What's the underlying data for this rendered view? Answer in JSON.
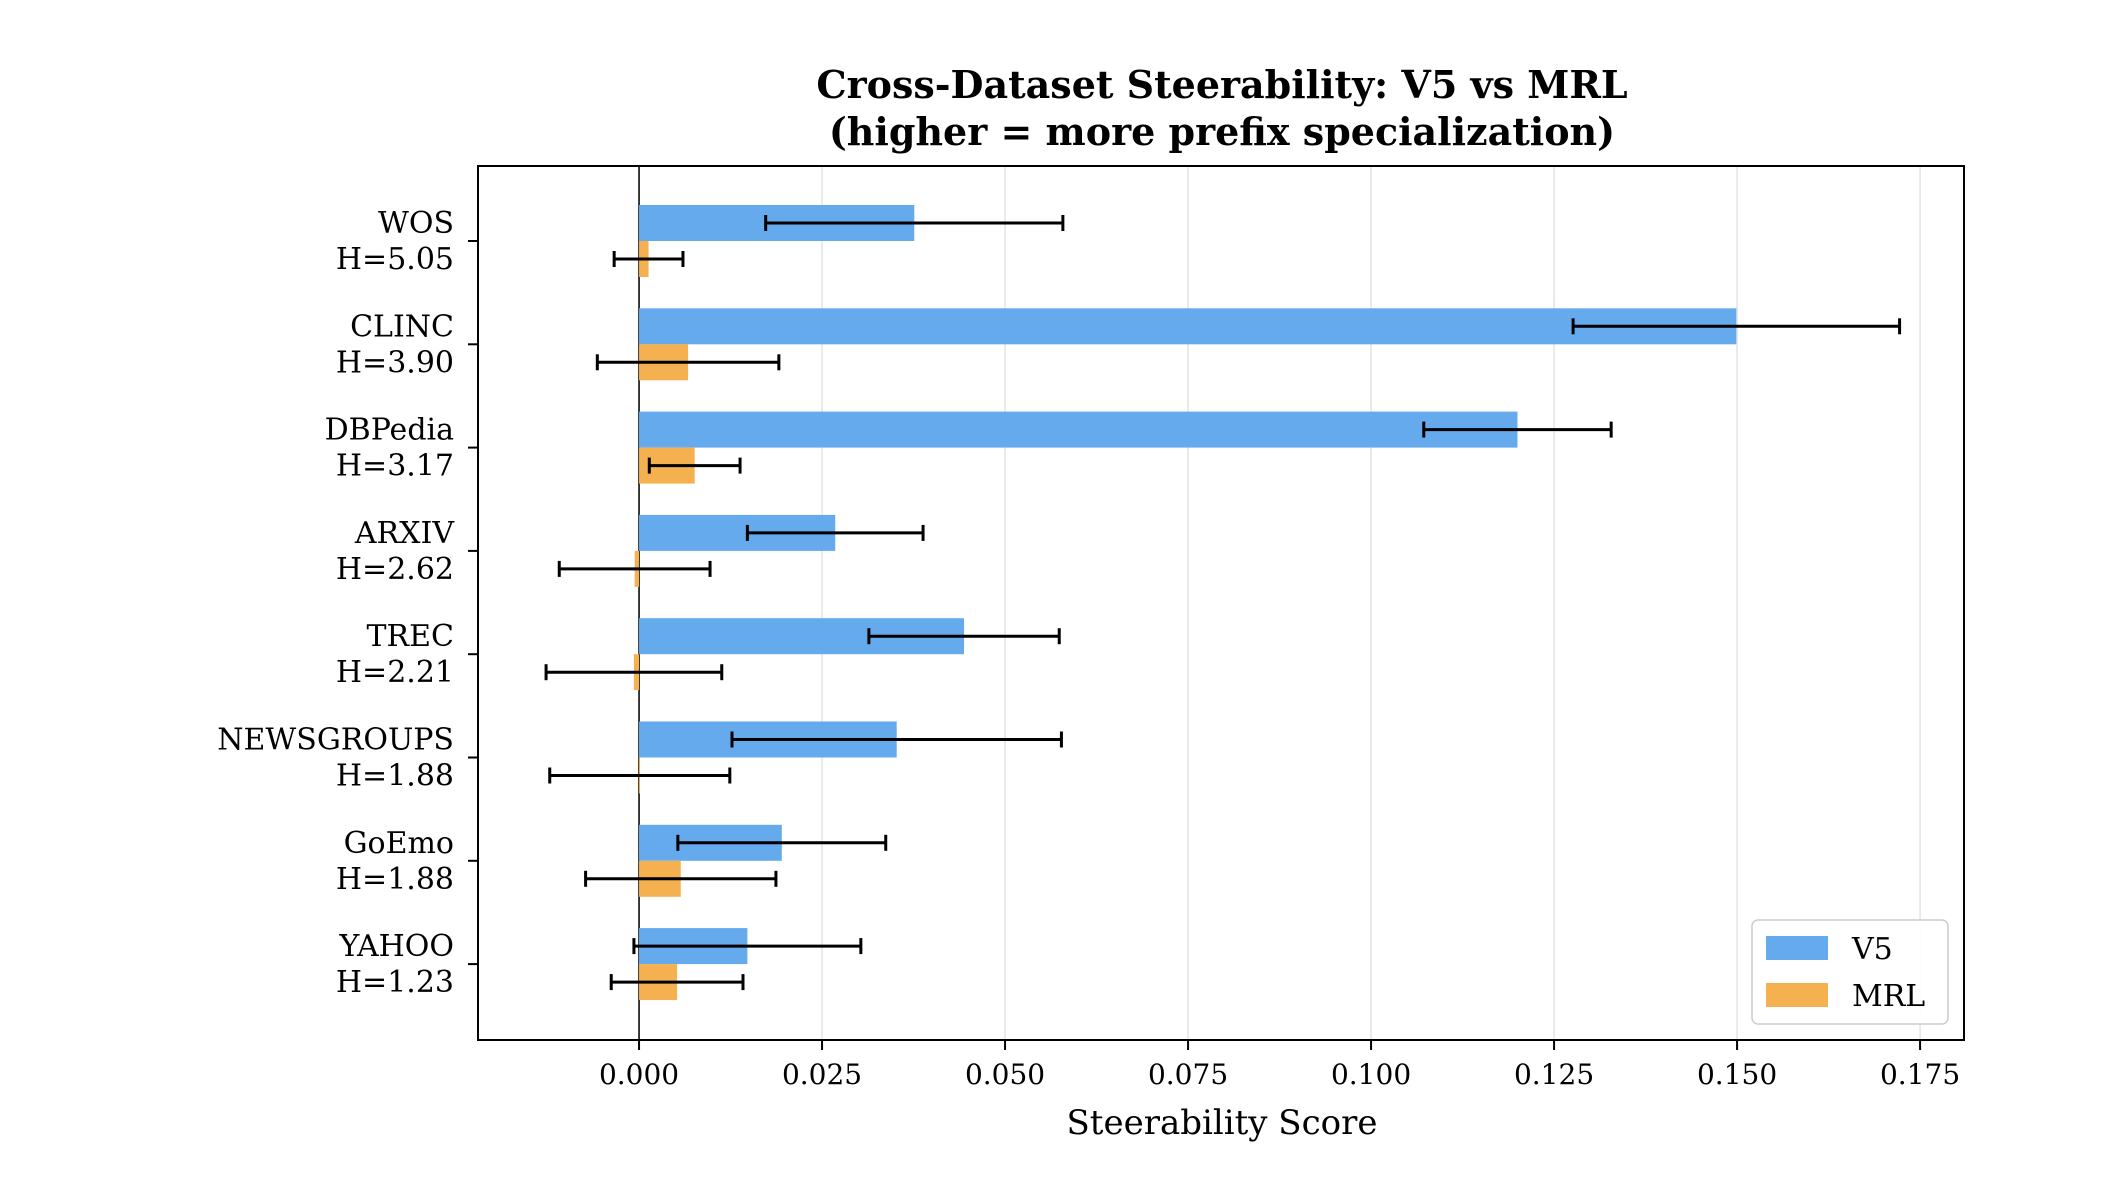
{
  "chart_data": {
    "type": "bar",
    "orientation": "horizontal",
    "title": "Cross-Dataset Steerability: V5 vs MRL",
    "subtitle": "(higher = more prefix specialization)",
    "xlabel": "Steerability Score",
    "ylabel": "",
    "xlim": [
      -0.022,
      0.181
    ],
    "xticks": [
      0.0,
      0.025,
      0.05,
      0.075,
      0.1,
      0.125,
      0.15,
      0.175
    ],
    "xtick_labels": [
      "0.000",
      "0.025",
      "0.050",
      "0.075",
      "0.100",
      "0.125",
      "0.150",
      "0.175"
    ],
    "grid": "vertical",
    "legend_position": "bottom-right",
    "categories": [
      {
        "name": "WOS",
        "h": "H=5.05"
      },
      {
        "name": "CLINC",
        "h": "H=3.90"
      },
      {
        "name": "DBPedia",
        "h": "H=3.17"
      },
      {
        "name": "ARXIV",
        "h": "H=2.62"
      },
      {
        "name": "TREC",
        "h": "H=2.21"
      },
      {
        "name": "NEWSGROUPS",
        "h": "H=1.88"
      },
      {
        "name": "GoEmo",
        "h": "H=1.88"
      },
      {
        "name": "YAHOO",
        "h": "H=1.23"
      }
    ],
    "series": [
      {
        "name": "V5",
        "color": "#66aaee",
        "values": [
          0.0376,
          0.1499,
          0.12,
          0.0268,
          0.0444,
          0.0352,
          0.0195,
          0.0148
        ],
        "errors": [
          0.0203,
          0.0223,
          0.0128,
          0.012,
          0.013,
          0.0225,
          0.0142,
          0.0155
        ]
      },
      {
        "name": "MRL",
        "color": "#f5b04f",
        "values": [
          0.0013,
          0.0067,
          0.0076,
          -0.0006,
          -0.0007,
          0.0001,
          0.0057,
          0.0052
        ],
        "errors": [
          0.0047,
          0.0124,
          0.0062,
          0.0103,
          0.012,
          0.0123,
          0.013,
          0.009
        ]
      }
    ]
  }
}
